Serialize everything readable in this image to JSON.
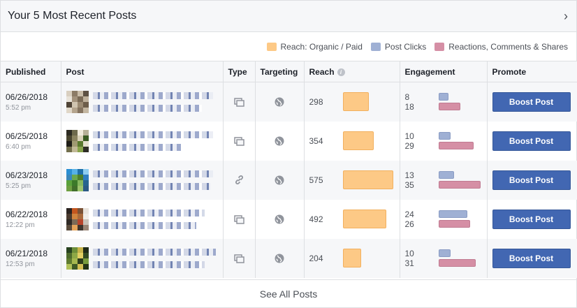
{
  "header": {
    "title": "Your 5 Most Recent Posts"
  },
  "legend": {
    "items": [
      {
        "label": "Reach: Organic / Paid",
        "color": "#fdc986"
      },
      {
        "label": "Post Clicks",
        "color": "#9fb0d4"
      },
      {
        "label": "Reactions, Comments & Shares",
        "color": "#d58fa5"
      }
    ]
  },
  "table": {
    "columns": [
      "Published",
      "Post",
      "Type",
      "Targeting",
      "Reach",
      "Engagement",
      "Promote"
    ],
    "rows": [
      {
        "date": "06/26/2018",
        "time": "5:52 pm",
        "type": "status-icon",
        "targeting": "globe-icon",
        "reach": "298",
        "reach_value": 298,
        "clicks": "8",
        "clicks_value": 8,
        "reactions": "18",
        "reactions_value": 18,
        "promote": "Boost Post"
      },
      {
        "date": "06/25/2018",
        "time": "6:40 pm",
        "type": "status-icon",
        "targeting": "globe-icon",
        "reach": "354",
        "reach_value": 354,
        "clicks": "10",
        "clicks_value": 10,
        "reactions": "29",
        "reactions_value": 29,
        "promote": "Boost Post"
      },
      {
        "date": "06/23/2018",
        "time": "5:25 pm",
        "type": "link-icon",
        "targeting": "globe-icon",
        "reach": "575",
        "reach_value": 575,
        "clicks": "13",
        "clicks_value": 13,
        "reactions": "35",
        "reactions_value": 35,
        "promote": "Boost Post"
      },
      {
        "date": "06/22/2018",
        "time": "12:22 pm",
        "type": "status-icon",
        "targeting": "globe-icon",
        "reach": "492",
        "reach_value": 492,
        "clicks": "24",
        "clicks_value": 24,
        "reactions": "26",
        "reactions_value": 26,
        "promote": "Boost Post"
      },
      {
        "date": "06/21/2018",
        "time": "12:53 pm",
        "type": "status-icon",
        "targeting": "globe-icon",
        "reach": "204",
        "reach_value": 204,
        "clicks": "10",
        "clicks_value": 10,
        "reactions": "31",
        "reactions_value": 31,
        "promote": "Boost Post"
      }
    ]
  },
  "footer": {
    "label": "See All Posts"
  }
}
